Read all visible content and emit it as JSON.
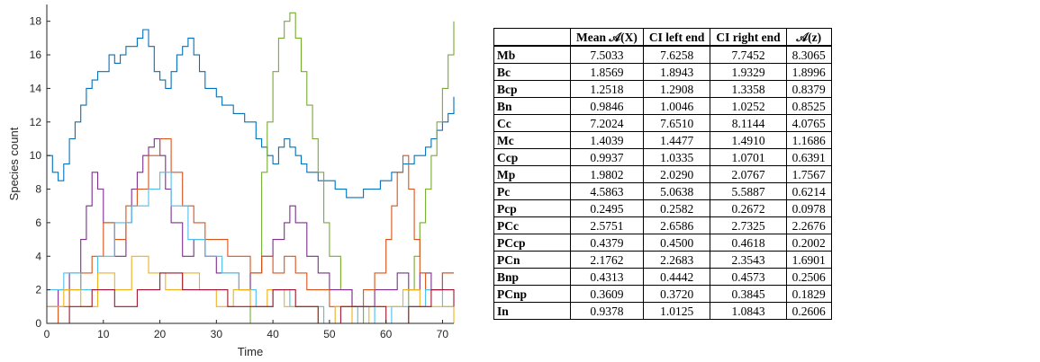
{
  "chart_data": {
    "type": "line",
    "xlabel": "Time",
    "ylabel": "Species count",
    "xlim": [
      0,
      72
    ],
    "ylim": [
      0,
      19
    ],
    "xticks": [
      "0",
      "10",
      "20",
      "30",
      "40",
      "50",
      "60",
      "70"
    ],
    "yticks": [
      "0",
      "2",
      "4",
      "6",
      "8",
      "10",
      "12",
      "14",
      "16",
      "18"
    ],
    "grid": false,
    "series": [
      {
        "color": "#0072BD",
        "x": [
          0,
          1,
          2,
          3,
          4,
          5,
          6,
          7,
          8,
          9,
          10,
          11,
          12,
          13,
          14,
          15,
          16,
          17,
          18,
          19,
          20,
          21,
          22,
          23,
          24,
          25,
          26,
          27,
          28,
          29,
          30,
          31,
          32,
          33,
          34,
          35,
          36,
          37,
          38,
          39,
          40,
          41,
          42,
          43,
          44,
          45,
          46,
          47,
          48,
          49,
          50,
          51,
          52,
          53,
          54,
          55,
          56,
          57,
          58,
          59,
          60,
          61,
          62,
          63,
          64,
          65,
          66,
          67,
          68,
          69,
          70,
          71,
          72
        ],
        "y": [
          10,
          9,
          8.5,
          9.5,
          11,
          12,
          13,
          14,
          14.5,
          15,
          15,
          16,
          15.5,
          16,
          16.5,
          16.5,
          17,
          17.5,
          16.5,
          15,
          14.5,
          14,
          15,
          16,
          16.5,
          17,
          16,
          15,
          14,
          14,
          13.5,
          13,
          13,
          12.5,
          12.5,
          12,
          12,
          11,
          10.5,
          10,
          9.5,
          10.5,
          11,
          10.5,
          10,
          9.5,
          9,
          9,
          8.5,
          8.5,
          8.5,
          8,
          8,
          7.5,
          7.5,
          7.5,
          8,
          8,
          8,
          8.5,
          8.5,
          9,
          9,
          9.5,
          9.5,
          10,
          10,
          10.5,
          11,
          11.5,
          12,
          12.5,
          13.5
        ]
      },
      {
        "color": "#77AC30",
        "x": [
          0,
          2,
          4,
          6,
          8,
          10,
          12,
          14,
          16,
          18,
          20,
          22,
          24,
          26,
          28,
          30,
          32,
          34,
          36,
          38,
          39,
          40,
          41,
          42,
          43,
          44,
          45,
          46,
          47,
          48,
          49,
          50,
          52,
          54,
          56,
          58,
          60,
          62,
          64,
          65,
          66,
          67,
          68,
          69,
          70,
          71,
          72
        ],
        "y": [
          0,
          0,
          0,
          0,
          0,
          0,
          0,
          0,
          0,
          0,
          0,
          0,
          0,
          0,
          0,
          0,
          0,
          0,
          3,
          9,
          12,
          15,
          17,
          18,
          18.5,
          17,
          15,
          13,
          11,
          9,
          6,
          4,
          2,
          1,
          0,
          0,
          0,
          0,
          2,
          4,
          6,
          8,
          10,
          12,
          14,
          16,
          18
        ]
      },
      {
        "color": "#7E2F8E",
        "x": [
          0,
          2,
          4,
          6,
          7,
          8,
          9,
          10,
          12,
          14,
          15,
          16,
          17,
          18,
          19,
          20,
          21,
          22,
          24,
          26,
          28,
          30,
          32,
          34,
          36,
          38,
          40,
          42,
          43,
          44,
          46,
          48,
          50,
          52,
          54,
          56,
          58,
          60,
          62,
          64,
          66,
          68,
          70,
          72
        ],
        "y": [
          1,
          2,
          3,
          5,
          7,
          9,
          8,
          6,
          4,
          6,
          8,
          9,
          10,
          10.5,
          11,
          10,
          8,
          6,
          4,
          5,
          4,
          3,
          3,
          2,
          3,
          4,
          5,
          6,
          7,
          6,
          4,
          3,
          2,
          2,
          1,
          1,
          2,
          2,
          3,
          2,
          3,
          2,
          3,
          3
        ]
      },
      {
        "color": "#D95319",
        "x": [
          0,
          2,
          4,
          6,
          8,
          10,
          12,
          14,
          16,
          18,
          20,
          22,
          24,
          26,
          28,
          30,
          32,
          34,
          36,
          38,
          40,
          42,
          44,
          46,
          48,
          50,
          52,
          54,
          56,
          58,
          60,
          61,
          62,
          63,
          64,
          65,
          66,
          67,
          68,
          70,
          72
        ],
        "y": [
          0,
          1,
          2,
          3,
          4,
          6,
          5,
          7,
          8,
          10,
          11,
          9,
          7,
          6,
          5,
          5,
          4,
          4,
          3,
          4,
          3,
          4,
          3,
          2,
          2,
          1,
          1,
          1,
          2,
          3,
          5,
          7,
          9,
          10,
          8,
          5,
          3,
          2,
          2,
          3,
          3
        ]
      },
      {
        "color": "#4DBEEE",
        "x": [
          0,
          3,
          6,
          9,
          12,
          15,
          18,
          20,
          22,
          25,
          28,
          31,
          34,
          37,
          40,
          43,
          46,
          49,
          52,
          55,
          58,
          61,
          64,
          67,
          70,
          72
        ],
        "y": [
          2,
          3,
          2,
          4,
          6,
          7,
          8,
          9,
          7,
          5,
          4,
          3,
          2,
          1,
          2,
          1,
          1,
          0,
          0,
          1,
          0,
          1,
          1,
          2,
          1,
          1
        ]
      },
      {
        "color": "#EDB120",
        "x": [
          0,
          3,
          6,
          9,
          12,
          15,
          18,
          21,
          24,
          27,
          30,
          33,
          36,
          39,
          42,
          45,
          48,
          51,
          54,
          57,
          60,
          63,
          66,
          69,
          72
        ],
        "y": [
          1,
          2,
          1,
          3,
          2,
          4,
          3,
          2,
          3,
          2,
          1,
          2,
          1,
          2,
          1,
          1,
          0,
          1,
          0,
          1,
          1,
          2,
          1,
          1,
          0
        ]
      },
      {
        "color": "#A2142F",
        "x": [
          0,
          4,
          8,
          12,
          16,
          20,
          24,
          28,
          32,
          36,
          40,
          44,
          48,
          52,
          56,
          60,
          64,
          68,
          72
        ],
        "y": [
          0,
          1,
          2,
          1,
          2,
          3,
          2,
          2,
          1,
          1,
          2,
          1,
          0,
          1,
          1,
          0,
          1,
          2,
          1
        ]
      }
    ]
  },
  "table": {
    "headers": [
      "",
      "Mean 𝒜(X)",
      "CI left end",
      "CI right end",
      "𝒜(z)"
    ],
    "rows": [
      {
        "label": "Mb",
        "values": [
          "7.5033",
          "7.6258",
          "7.7452",
          "8.3065"
        ]
      },
      {
        "label": "Bc",
        "values": [
          "1.8569",
          "1.8943",
          "1.9329",
          "1.8996"
        ]
      },
      {
        "label": "Bcp",
        "values": [
          "1.2518",
          "1.2908",
          "1.3358",
          "0.8379"
        ]
      },
      {
        "label": "Bn",
        "values": [
          "0.9846",
          "1.0046",
          "1.0252",
          "0.8525"
        ]
      },
      {
        "label": "Cc",
        "values": [
          "7.2024",
          "7.6510",
          "8.1144",
          "4.0765"
        ]
      },
      {
        "label": "Mc",
        "values": [
          "1.4039",
          "1.4477",
          "1.4910",
          "1.1686"
        ]
      },
      {
        "label": "Ccp",
        "values": [
          "0.9937",
          "1.0335",
          "1.0701",
          "0.6391"
        ]
      },
      {
        "label": "Mp",
        "values": [
          "1.9802",
          "2.0290",
          "2.0767",
          "1.7567"
        ]
      },
      {
        "label": "Pc",
        "values": [
          "4.5863",
          "5.0638",
          "5.5887",
          "0.6214"
        ]
      },
      {
        "label": "Pcp",
        "values": [
          "0.2495",
          "0.2582",
          "0.2672",
          "0.0978"
        ]
      },
      {
        "label": "PCc",
        "values": [
          "2.5751",
          "2.6586",
          "2.7325",
          "2.2676"
        ]
      },
      {
        "label": "PCcp",
        "values": [
          "0.4379",
          "0.4500",
          "0.4618",
          "0.2002"
        ]
      },
      {
        "label": "PCn",
        "values": [
          "2.1762",
          "2.2683",
          "2.3543",
          "1.6901"
        ]
      },
      {
        "label": "Bnp",
        "values": [
          "0.4313",
          "0.4442",
          "0.4573",
          "0.2506"
        ]
      },
      {
        "label": "PCnp",
        "values": [
          "0.3609",
          "0.3720",
          "0.3845",
          "0.1829"
        ]
      },
      {
        "label": "In",
        "values": [
          "0.9378",
          "1.0125",
          "1.0843",
          "0.2606"
        ]
      }
    ]
  }
}
